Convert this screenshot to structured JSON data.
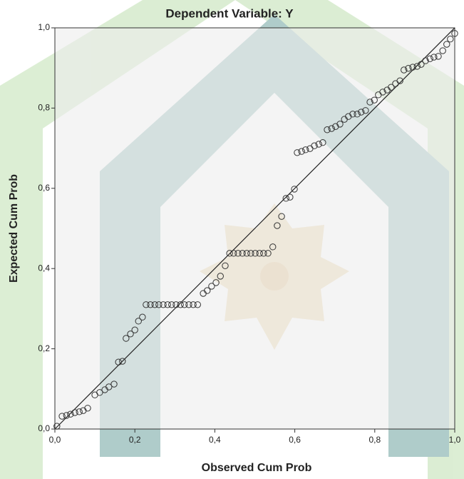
{
  "chart_data": {
    "type": "scatter",
    "title": "Dependent Variable: Y",
    "x_label": "Observed Cum Prob",
    "y_label": "Expected Cum Prob",
    "color": "#333333",
    "xlim": [
      0,
      1
    ],
    "ylim": [
      0,
      1
    ],
    "xticks": [
      {
        "value": 0,
        "label": "0,0"
      },
      {
        "value": 0.2,
        "label": "0,2"
      },
      {
        "value": 0.4,
        "label": "0,4"
      },
      {
        "value": 0.6,
        "label": "0,6"
      },
      {
        "value": 0.8,
        "label": "0,8"
      },
      {
        "value": 1,
        "label": "1,0"
      }
    ],
    "yticks": [
      {
        "value": 0,
        "label": "0,0"
      },
      {
        "value": 0.2,
        "label": "0,2"
      },
      {
        "value": 0.4,
        "label": "0,4"
      },
      {
        "value": 0.6,
        "label": "0,6"
      },
      {
        "value": 0.8,
        "label": "0,8"
      },
      {
        "value": 1,
        "label": "1,0"
      }
    ],
    "x": [
      0.005,
      0.018,
      0.029,
      0.039,
      0.05,
      0.061,
      0.071,
      0.082,
      0.1,
      0.112,
      0.125,
      0.135,
      0.148,
      0.159,
      0.169,
      0.178,
      0.189,
      0.2,
      0.209,
      0.219,
      0.228,
      0.239,
      0.25,
      0.26,
      0.271,
      0.282,
      0.292,
      0.303,
      0.314,
      0.324,
      0.335,
      0.346,
      0.357,
      0.371,
      0.381,
      0.392,
      0.403,
      0.414,
      0.426,
      0.437,
      0.447,
      0.458,
      0.469,
      0.48,
      0.49,
      0.501,
      0.512,
      0.522,
      0.533,
      0.545,
      0.556,
      0.567,
      0.578,
      0.588,
      0.599,
      0.606,
      0.617,
      0.627,
      0.638,
      0.649,
      0.66,
      0.67,
      0.681,
      0.692,
      0.702,
      0.713,
      0.724,
      0.734,
      0.745,
      0.756,
      0.766,
      0.777,
      0.788,
      0.799,
      0.809,
      0.82,
      0.831,
      0.841,
      0.852,
      0.863,
      0.873,
      0.884,
      0.895,
      0.906,
      0.916,
      0.927,
      0.938,
      0.948,
      0.959,
      0.97,
      0.98,
      0.989,
      1.0
    ],
    "values": [
      0.007,
      0.032,
      0.034,
      0.037,
      0.041,
      0.043,
      0.046,
      0.052,
      0.085,
      0.091,
      0.098,
      0.105,
      0.112,
      0.167,
      0.169,
      0.226,
      0.237,
      0.247,
      0.269,
      0.279,
      0.31,
      0.31,
      0.31,
      0.31,
      0.31,
      0.31,
      0.31,
      0.31,
      0.31,
      0.31,
      0.31,
      0.31,
      0.31,
      0.338,
      0.345,
      0.356,
      0.365,
      0.381,
      0.407,
      0.438,
      0.438,
      0.438,
      0.438,
      0.438,
      0.438,
      0.438,
      0.438,
      0.438,
      0.438,
      0.454,
      0.507,
      0.53,
      0.575,
      0.578,
      0.598,
      0.689,
      0.692,
      0.696,
      0.699,
      0.706,
      0.71,
      0.714,
      0.746,
      0.749,
      0.754,
      0.76,
      0.772,
      0.779,
      0.785,
      0.785,
      0.79,
      0.794,
      0.815,
      0.82,
      0.833,
      0.84,
      0.845,
      0.852,
      0.861,
      0.868,
      0.895,
      0.899,
      0.902,
      0.904,
      0.909,
      0.918,
      0.923,
      0.927,
      0.929,
      0.943,
      0.959,
      0.972,
      0.986
    ]
  }
}
